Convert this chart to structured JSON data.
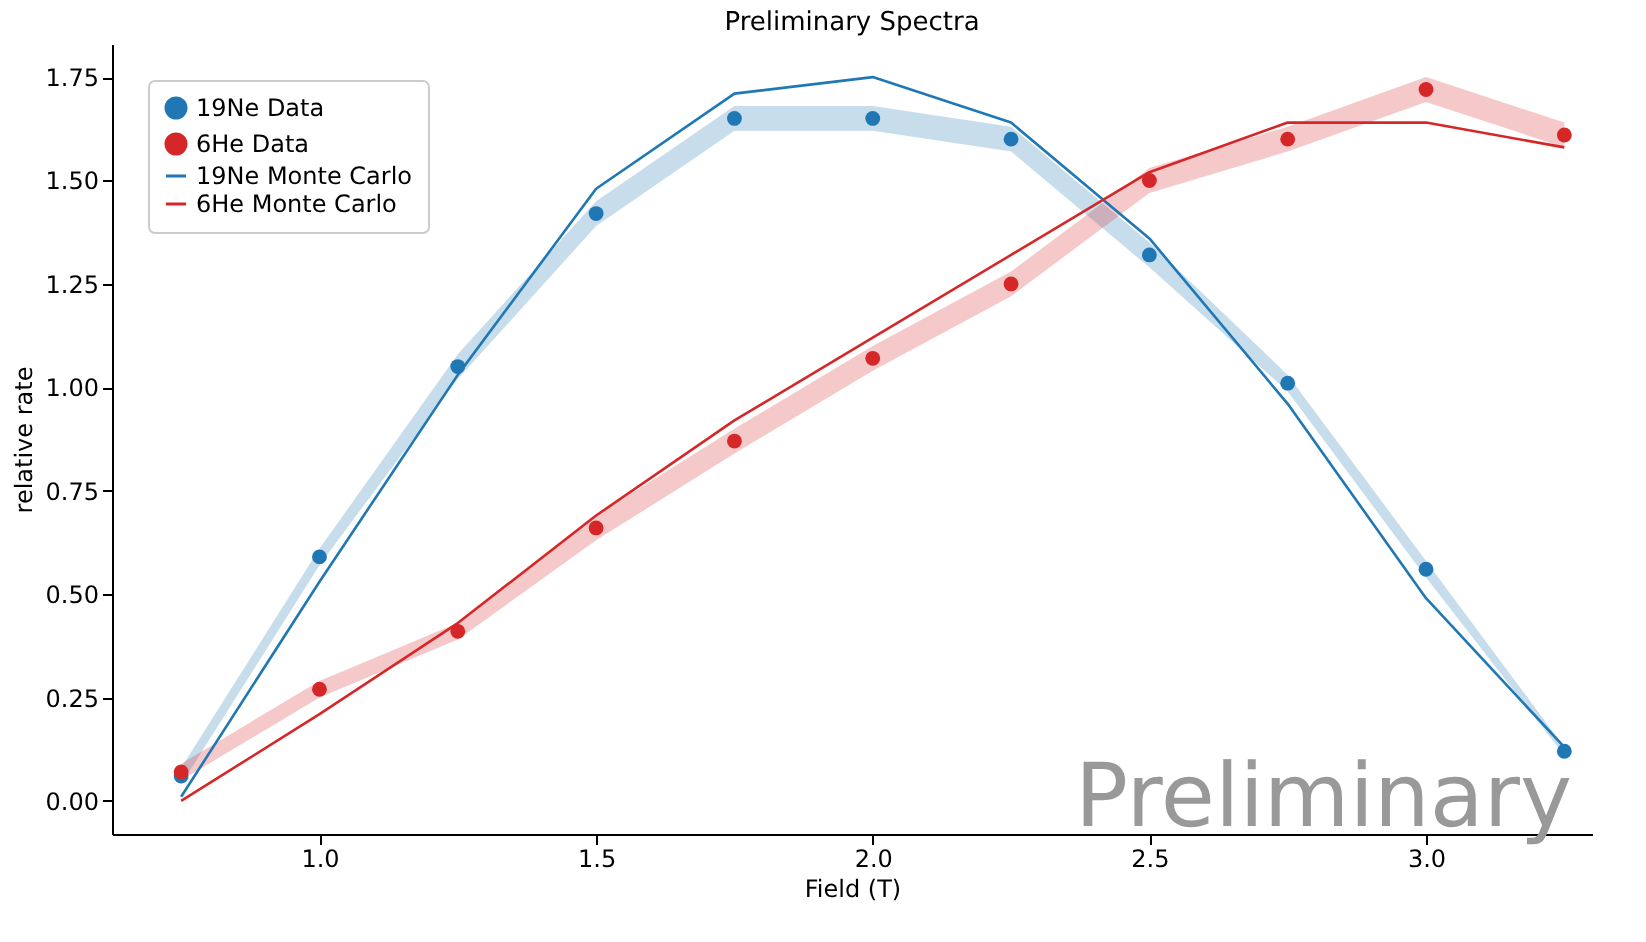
{
  "chart_data": {
    "type": "scatter",
    "title": "Preliminary Spectra",
    "xlabel": "Field (T)",
    "ylabel": "relative rate",
    "x": [
      0.75,
      1.0,
      1.25,
      1.5,
      1.75,
      2.0,
      2.25,
      2.5,
      2.75,
      3.0,
      3.25
    ],
    "series": [
      {
        "name": "19Ne Data",
        "marker": "circle",
        "color": "#1f77b4",
        "values": [
          0.06,
          0.59,
          1.05,
          1.42,
          1.65,
          1.65,
          1.6,
          1.32,
          1.01,
          0.56,
          0.12
        ],
        "lower": [
          0.04,
          0.57,
          1.02,
          1.39,
          1.62,
          1.62,
          1.57,
          1.29,
          0.99,
          0.54,
          0.11
        ],
        "upper": [
          0.08,
          0.61,
          1.08,
          1.45,
          1.68,
          1.68,
          1.63,
          1.35,
          1.03,
          0.58,
          0.13
        ]
      },
      {
        "name": "6He Data",
        "marker": "circle",
        "color": "#d62728",
        "values": [
          0.07,
          0.27,
          0.41,
          0.66,
          0.87,
          1.07,
          1.25,
          1.5,
          1.6,
          1.72,
          1.61
        ],
        "lower": [
          0.05,
          0.25,
          0.39,
          0.63,
          0.84,
          1.04,
          1.22,
          1.47,
          1.57,
          1.69,
          1.58
        ],
        "upper": [
          0.09,
          0.29,
          0.43,
          0.69,
          0.9,
          1.1,
          1.28,
          1.53,
          1.63,
          1.75,
          1.64
        ]
      },
      {
        "name": "19Ne Monte Carlo",
        "type": "line",
        "marker": "none",
        "color": "#1f77b4",
        "values": [
          0.01,
          0.53,
          1.03,
          1.48,
          1.71,
          1.75,
          1.64,
          1.36,
          0.96,
          0.49,
          0.13
        ]
      },
      {
        "name": "6He Monte Carlo",
        "type": "line",
        "marker": "none",
        "color": "#d62728",
        "values": [
          0.0,
          0.21,
          0.43,
          0.69,
          0.92,
          1.12,
          1.32,
          1.52,
          1.64,
          1.64,
          1.58
        ]
      }
    ],
    "xlim": [
      0.625,
      3.3
    ],
    "ylim": [
      -0.08,
      1.83
    ],
    "xticks": [
      {
        "value": 1,
        "label": "1.0"
      },
      1.5,
      {
        "value": 2,
        "label": "2.0"
      },
      2.5,
      {
        "value": 3,
        "label": "3.0"
      }
    ],
    "yticks": [
      {
        "value": 0,
        "label": "0.00"
      },
      0.25,
      {
        "value": 0.5,
        "label": "0.50"
      },
      0.75,
      {
        "value": 1,
        "label": "1.00"
      },
      1.25,
      {
        "value": 1.5,
        "label": "1.50"
      },
      1.75
    ],
    "grid": false,
    "legend": "top left",
    "annotations": [
      "Preliminary"
    ]
  }
}
